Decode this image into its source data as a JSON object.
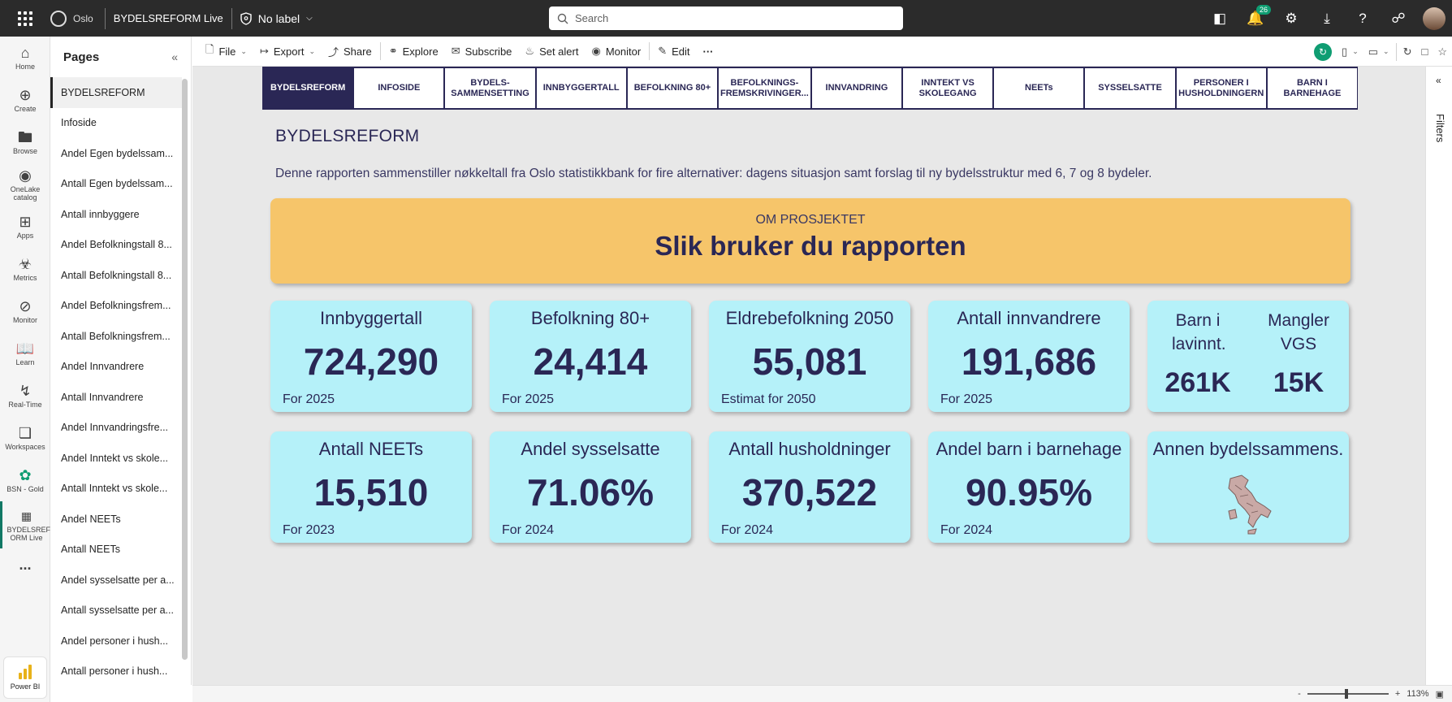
{
  "app": {
    "org_name": "Oslo",
    "report_title": "BYDELSREFORM Live",
    "sensitivity_label": "No label",
    "search_placeholder": "Search",
    "notification_count": "26"
  },
  "rail": {
    "items": [
      {
        "label": "Home",
        "icon": "home-icon"
      },
      {
        "label": "Create",
        "icon": "plus-icon"
      },
      {
        "label": "Browse",
        "icon": "folder-icon"
      },
      {
        "label": "OneLake catalog",
        "icon": "onelake-icon"
      },
      {
        "label": "Apps",
        "icon": "apps-icon"
      },
      {
        "label": "Metrics",
        "icon": "trophy-icon"
      },
      {
        "label": "Monitor",
        "icon": "monitor-icon"
      },
      {
        "label": "Learn",
        "icon": "book-icon"
      },
      {
        "label": "Real-Time",
        "icon": "lightning-icon"
      },
      {
        "label": "Workspaces",
        "icon": "workspaces-icon"
      },
      {
        "label": "BSN - Gold",
        "icon": "workspace-gold-icon"
      },
      {
        "label": "BYDELSREF ORM Live",
        "icon": "report-icon"
      }
    ],
    "more": "...",
    "powerbi_label": "Power BI"
  },
  "pages": {
    "title": "Pages",
    "items": [
      "BYDELSREFORM",
      "Infoside",
      "Andel Egen bydelssam...",
      "Antall Egen bydelssam...",
      "Antall innbyggere",
      "Andel Befolkningstall 8...",
      "Antall Befolkningstall 8...",
      "Andel Befolkningsfrem...",
      "Antall Befolkningsfrem...",
      "Andel Innvandrere",
      "Antall Innvandrere",
      "Andel Innvandringsfre...",
      "Andel Inntekt vs skole...",
      "Antall Inntekt vs skole...",
      "Andel NEETs",
      "Antall NEETs",
      "Andel sysselsatte per a...",
      "Antall sysselsatte per a...",
      "Andel personer i hush...",
      "Antall personer i hush..."
    ]
  },
  "toolbar": {
    "file": "File",
    "export": "Export",
    "share": "Share",
    "explore": "Explore",
    "subscribe": "Subscribe",
    "set_alert": "Set alert",
    "monitor": "Monitor",
    "edit": "Edit",
    "more": "···"
  },
  "report": {
    "tabs": [
      "BYDELSREFORM",
      "INFOSIDE",
      "BYDELS-\nSAMMENSETTING",
      "INNBYGGERTALL",
      "BEFOLKNING 80+",
      "BEFOLKNINGS-\nFREMSKRIVINGER...",
      "INNVANDRING",
      "INNTEKT VS\nSKOLEGANG",
      "NEETs",
      "SYSSELSATTE",
      "PERSONER I\nHUSHOLDNINGERN",
      "BARN I\nBARNEHAGE"
    ],
    "heading": "BYDELSREFORM",
    "description": "Denne rapporten sammenstiller nøkkeltall fra Oslo statistikkbank for fire alternativer: dagens situasjon samt forslag til ny bydelsstruktur med 6, 7 og 8 bydeler.",
    "banner": {
      "subtitle": "OM PROSJEKTET",
      "title": "Slik bruker du rapporten"
    },
    "cards": [
      {
        "title": "Innbyggertall",
        "value": "724,290",
        "foot": "For 2025"
      },
      {
        "title": "Befolkning 80+",
        "value": "24,414",
        "foot": "For 2025"
      },
      {
        "title": "Eldrebefolkning 2050",
        "value": "55,081",
        "foot": "Estimat for 2050"
      },
      {
        "title": "Antall innvandrere",
        "value": "191,686",
        "foot": "For 2025"
      },
      {
        "title": "Antall NEETs",
        "value": "15,510",
        "foot": "For 2023"
      },
      {
        "title": "Andel sysselsatte",
        "value": "71.06%",
        "foot": "For 2024"
      },
      {
        "title": "Antall husholdninger",
        "value": "370,522",
        "foot": "For 2024"
      },
      {
        "title": "Andel barn i barnehage",
        "value": "90.95%",
        "foot": "For 2024"
      }
    ],
    "split_card": {
      "left_label": "Barn i lavinnt.",
      "left_value": "261K",
      "right_label": "Mangler VGS",
      "right_value": "15K"
    },
    "map_card": {
      "title": "Annen bydelssammens.",
      "icon": "map-icon"
    }
  },
  "filters_label": "Filters",
  "status": {
    "zoom": "113%"
  },
  "colors": {
    "navy": "#2a2755",
    "card_bg": "#b5f1f9",
    "banner_bg": "#f6c56a",
    "accent_green": "#0f9d72"
  }
}
